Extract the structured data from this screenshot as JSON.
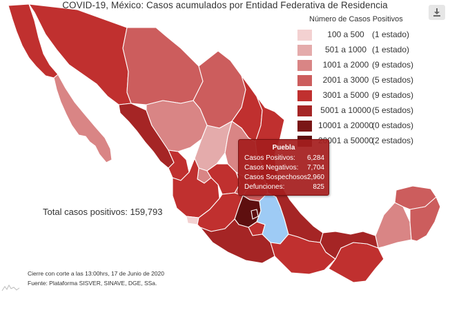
{
  "title": "COVID-19, México: Casos acumulados por Entidad Federativa de Residencia",
  "export_icon": "download-icon",
  "legend": {
    "title": "Número de Casos Positivos",
    "items": [
      {
        "range": "100 a 500",
        "count": "(1 estado)",
        "color": "#f3d1d1"
      },
      {
        "range": "501 a 1000",
        "count": "(1 estado)",
        "color": "#e4abab"
      },
      {
        "range": "1001 a 2000",
        "count": "(9 estados)",
        "color": "#d98585"
      },
      {
        "range": "2001 a 3000",
        "count": "(5 estados)",
        "color": "#cc5d5d"
      },
      {
        "range": "3001 a 5000",
        "count": "(9 estados)",
        "color": "#c0302f"
      },
      {
        "range": "5001 a 10000",
        "count": "(5 estados)",
        "color": "#a52525"
      },
      {
        "range": "10001 a 20000",
        "count": "(0 estados)",
        "color": "#7a1616"
      },
      {
        "range": "20001 a 50000",
        "count": "(2 estados)",
        "color": "#5e0f0f"
      }
    ]
  },
  "total": "Total casos positivos: 159,793",
  "footnotes": [
    "Cierre con corte a las 13:00hrs, 17 de Junio de 2020",
    "Fuente: Plataforma SISVER, SINAVE, DGE, SSa."
  ],
  "tooltip": {
    "state": "Puebla",
    "rows": [
      {
        "label": "Casos Positivos:",
        "value": "6,284"
      },
      {
        "label": "Casos Negativos:",
        "value": "7,704"
      },
      {
        "label": "Casos Sospechosos:",
        "value": "2,960"
      },
      {
        "label": "Defunciones:",
        "value": "825"
      }
    ]
  },
  "hover_color": "#9ecbf5"
}
